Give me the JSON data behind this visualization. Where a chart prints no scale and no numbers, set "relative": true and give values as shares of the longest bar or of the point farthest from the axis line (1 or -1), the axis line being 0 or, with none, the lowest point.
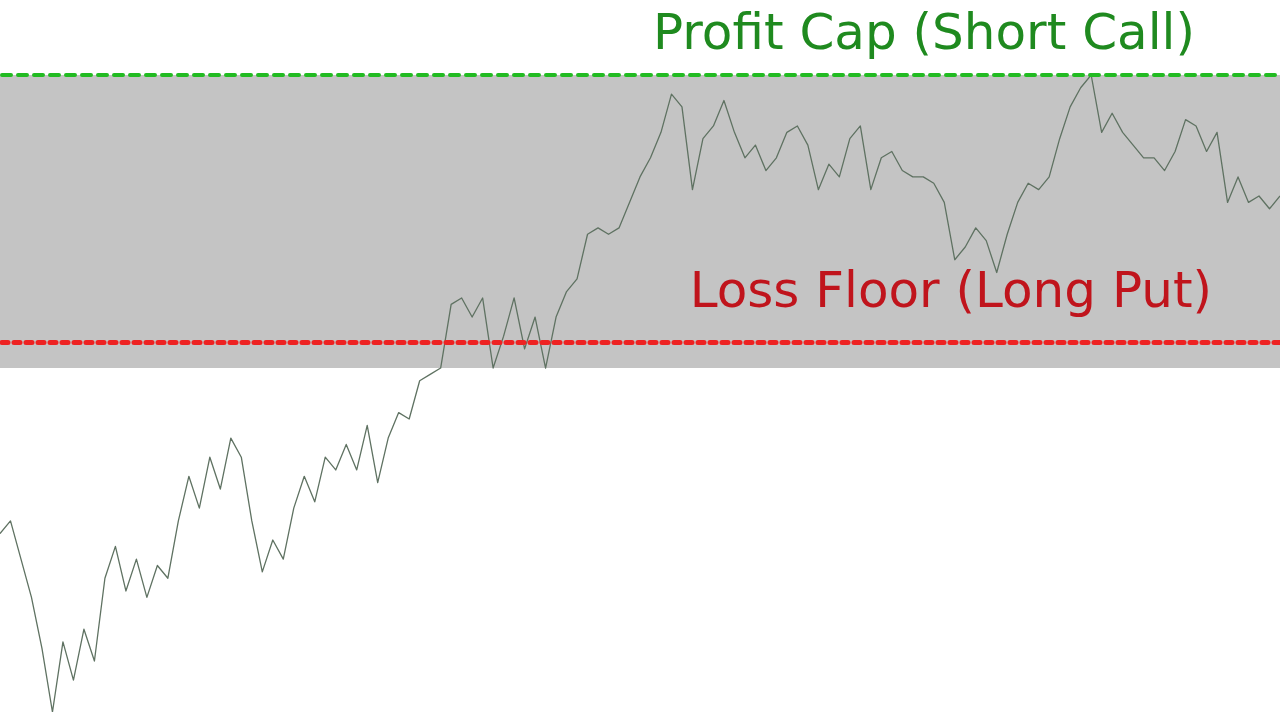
{
  "chart_data": {
    "type": "line",
    "relative": true,
    "legend": false,
    "marker": "none",
    "line_style": "solid",
    "categories": [
      null,
      null,
      null,
      null,
      null,
      null,
      null,
      null,
      null,
      null,
      null,
      null,
      null,
      null,
      null,
      null,
      null,
      null,
      null,
      null,
      null,
      null,
      null,
      null,
      null,
      null,
      null,
      null,
      null,
      null,
      null,
      null,
      null,
      null,
      null,
      null,
      null,
      null,
      null,
      null,
      null,
      null,
      null,
      null,
      null,
      null,
      null,
      null,
      null,
      null,
      null,
      null,
      null,
      null,
      null,
      null,
      null,
      null,
      null,
      null,
      null,
      null,
      null,
      null,
      null,
      null,
      null,
      null,
      null,
      null,
      null,
      null,
      null,
      null,
      null,
      null,
      null,
      null,
      null,
      null,
      null,
      null,
      null,
      null,
      null,
      null,
      null,
      null,
      null,
      null,
      null,
      null,
      null,
      null,
      null,
      null,
      null,
      null,
      null,
      null,
      null,
      null,
      null,
      null,
      null,
      null,
      null,
      null,
      null,
      null,
      null,
      null,
      null,
      null,
      null,
      null,
      null,
      null,
      null,
      null,
      null,
      null,
      null
    ],
    "series": [
      {
        "color": "#5f7262",
        "values": [
          0.28,
          0.3,
          0.24,
          0.18,
          0.1,
          0,
          0.11,
          0.05,
          0.13,
          0.08,
          0.21,
          0.26,
          0.19,
          0.24,
          0.18,
          0.23,
          0.21,
          0.3,
          0.37,
          0.32,
          0.4,
          0.35,
          0.43,
          0.4,
          0.3,
          0.22,
          0.27,
          0.24,
          0.32,
          0.37,
          0.33,
          0.4,
          0.38,
          0.42,
          0.38,
          0.45,
          0.36,
          0.43,
          0.47,
          0.46,
          0.52,
          0.53,
          0.54,
          0.64,
          0.65,
          0.62,
          0.65,
          0.54,
          0.59,
          0.65,
          0.57,
          0.62,
          0.54,
          0.62,
          0.66,
          0.68,
          0.75,
          0.76,
          0.75,
          0.76,
          0.8,
          0.84,
          0.87,
          0.91,
          0.97,
          0.95,
          0.82,
          0.9,
          0.92,
          0.96,
          0.91,
          0.87,
          0.89,
          0.85,
          0.87,
          0.91,
          0.92,
          0.89,
          0.82,
          0.86,
          0.84,
          0.9,
          0.92,
          0.82,
          0.87,
          0.88,
          0.85,
          0.84,
          0.84,
          0.83,
          0.8,
          0.71,
          0.73,
          0.76,
          0.74,
          0.69,
          0.75,
          0.8,
          0.83,
          0.82,
          0.84,
          0.9,
          0.95,
          0.98,
          1,
          0.91,
          0.94,
          0.91,
          0.89,
          0.87,
          0.87,
          0.85,
          0.88,
          0.93,
          0.92,
          0.88,
          0.91,
          0.8,
          0.84,
          0.8,
          0.81,
          0.79,
          0.81
        ]
      }
    ],
    "ref_lines": [
      {
        "axis": "y",
        "value": 1,
        "label": "Profit Cap (Short Call)",
        "color": "#22bb22",
        "line_style": "dashed"
      },
      {
        "axis": "y",
        "value": 0.58,
        "label": "Loss Floor (Long Put)",
        "color": "#ee2222",
        "line_style": "dotted"
      }
    ],
    "bands": [
      {
        "axis": "y",
        "from": 0.54,
        "to": 1,
        "color": "#c4c4c4"
      }
    ]
  }
}
